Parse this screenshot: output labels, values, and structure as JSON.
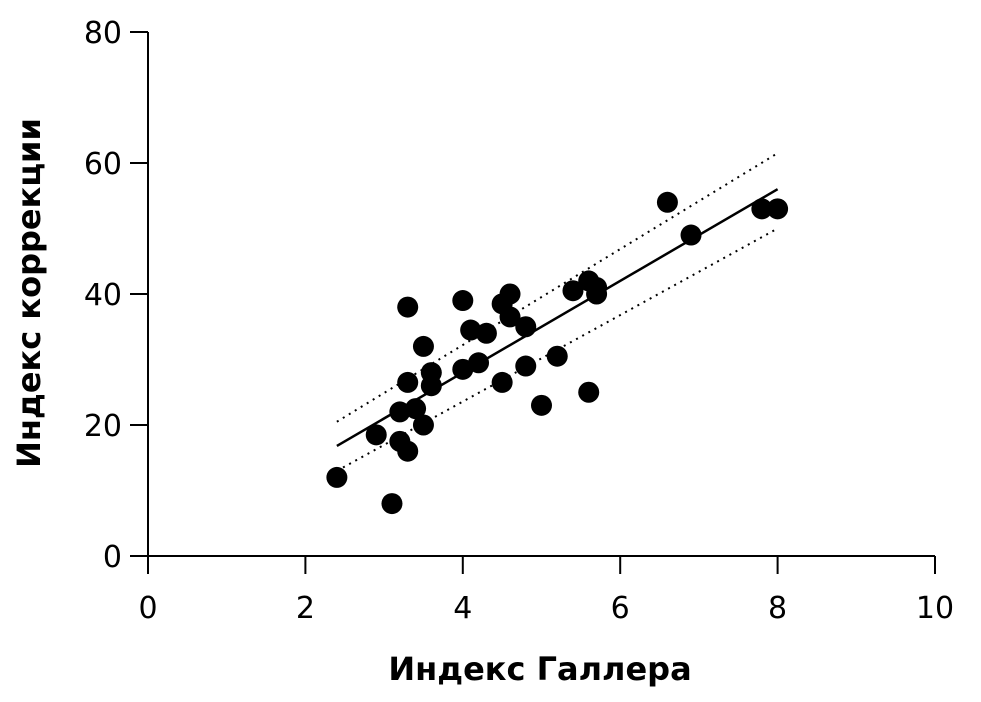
{
  "chart_data": {
    "type": "scatter",
    "xlabel": "Индекс Галлера",
    "ylabel": "Индекс коррекции",
    "xlim": [
      0,
      10
    ],
    "ylim": [
      0,
      80
    ],
    "x_ticks": [
      "0",
      "2",
      "4",
      "6",
      "8",
      "10"
    ],
    "y_ticks": [
      "0",
      "20",
      "40",
      "60",
      "80"
    ],
    "grid": false,
    "points": [
      {
        "x": 2.4,
        "y": 12
      },
      {
        "x": 2.9,
        "y": 18.5
      },
      {
        "x": 3.1,
        "y": 8
      },
      {
        "x": 3.2,
        "y": 22
      },
      {
        "x": 3.2,
        "y": 17.5
      },
      {
        "x": 3.3,
        "y": 16
      },
      {
        "x": 3.3,
        "y": 26.5
      },
      {
        "x": 3.3,
        "y": 38
      },
      {
        "x": 3.4,
        "y": 22.5
      },
      {
        "x": 3.5,
        "y": 20
      },
      {
        "x": 3.5,
        "y": 32
      },
      {
        "x": 3.6,
        "y": 28
      },
      {
        "x": 3.6,
        "y": 26
      },
      {
        "x": 4.0,
        "y": 39
      },
      {
        "x": 4.0,
        "y": 28.5
      },
      {
        "x": 4.1,
        "y": 34.5
      },
      {
        "x": 4.2,
        "y": 29.5
      },
      {
        "x": 4.3,
        "y": 34
      },
      {
        "x": 4.5,
        "y": 38.5
      },
      {
        "x": 4.5,
        "y": 26.5
      },
      {
        "x": 4.6,
        "y": 40
      },
      {
        "x": 4.6,
        "y": 36.5
      },
      {
        "x": 4.8,
        "y": 35
      },
      {
        "x": 4.8,
        "y": 29
      },
      {
        "x": 5.0,
        "y": 23
      },
      {
        "x": 5.2,
        "y": 30.5
      },
      {
        "x": 5.4,
        "y": 40.5
      },
      {
        "x": 5.6,
        "y": 42
      },
      {
        "x": 5.6,
        "y": 25
      },
      {
        "x": 5.7,
        "y": 41
      },
      {
        "x": 5.7,
        "y": 40
      },
      {
        "x": 6.6,
        "y": 54
      },
      {
        "x": 6.9,
        "y": 49
      },
      {
        "x": 7.8,
        "y": 53
      },
      {
        "x": 8.0,
        "y": 53
      }
    ],
    "fit_line": [
      {
        "x": 2.4,
        "y": 16.8
      },
      {
        "x": 8.0,
        "y": 56
      }
    ],
    "ci_upper": [
      {
        "x": 2.4,
        "y": 20.5
      },
      {
        "x": 8.0,
        "y": 61.5
      }
    ],
    "ci_lower": [
      {
        "x": 2.4,
        "y": 13
      },
      {
        "x": 8.0,
        "y": 50
      }
    ]
  }
}
